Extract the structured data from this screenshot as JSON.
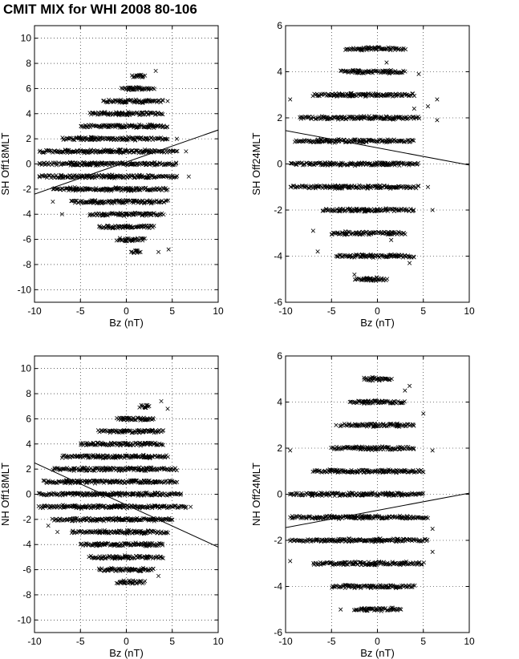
{
  "title": "CMIT MIX for WHI 2008 80-106",
  "chart_data": [
    {
      "id": "sh-18",
      "type": "scatter",
      "xlabel": "Bz (nT)",
      "ylabel": "SH Off18MLT",
      "xlim": [
        -10,
        10
      ],
      "ylim": [
        -11,
        11
      ],
      "xticks": [
        -10,
        -5,
        0,
        5,
        10
      ],
      "yticks": [
        -10,
        -8,
        -6,
        -4,
        -2,
        0,
        2,
        4,
        6,
        8,
        10
      ],
      "grid": true,
      "marker": "x",
      "series": [
        {
          "name": "points",
          "rows": [
            {
              "y": 7,
              "xmin": 0.6,
              "xmax": 2.0
            },
            {
              "y": 6,
              "xmin": -0.5,
              "xmax": 3.0
            },
            {
              "y": 5,
              "xmin": -2.5,
              "xmax": 4.0
            },
            {
              "y": 4,
              "xmin": -4.0,
              "xmax": 4.0
            },
            {
              "y": 3,
              "xmin": -5.0,
              "xmax": 4.5
            },
            {
              "y": 2,
              "xmin": -7.0,
              "xmax": 4.5
            },
            {
              "y": 1,
              "xmin": -9.5,
              "xmax": 5.5
            },
            {
              "y": 0,
              "xmin": -9.5,
              "xmax": 5.5
            },
            {
              "y": -1,
              "xmin": -9.5,
              "xmax": 5.5
            },
            {
              "y": -2,
              "xmin": -8.0,
              "xmax": 4.5
            },
            {
              "y": -3,
              "xmin": -6.0,
              "xmax": 4.5
            },
            {
              "y": -4,
              "xmin": -4.0,
              "xmax": 4.0
            },
            {
              "y": -5,
              "xmin": -3.0,
              "xmax": 3.0
            },
            {
              "y": -6,
              "xmin": -1.0,
              "xmax": 2.0
            },
            {
              "y": -7,
              "xmin": 0.5,
              "xmax": 1.5
            }
          ],
          "outliers": [
            [
              3.2,
              7.4
            ],
            [
              4.5,
              5.0
            ],
            [
              5.5,
              2.0
            ],
            [
              6.5,
              1.0
            ],
            [
              6.8,
              -1.0
            ],
            [
              -8.0,
              -3.0
            ],
            [
              -7.0,
              -4.0
            ],
            [
              3.5,
              -7.0
            ],
            [
              4.6,
              -6.8
            ]
          ]
        }
      ],
      "fit_line": {
        "x": [
          -10,
          10
        ],
        "y": [
          -2.4,
          2.7
        ]
      }
    },
    {
      "id": "sh-24",
      "type": "scatter",
      "xlabel": "Bz (nT)",
      "ylabel": "SH Off24MLT",
      "xlim": [
        -10,
        10
      ],
      "ylim": [
        -6,
        6
      ],
      "xticks": [
        -10,
        -5,
        0,
        5,
        10
      ],
      "yticks": [
        -6,
        -4,
        -2,
        0,
        2,
        4,
        6
      ],
      "grid": true,
      "marker": "x",
      "series": [
        {
          "name": "points",
          "rows": [
            {
              "y": 5,
              "xmin": -3.5,
              "xmax": 3.0
            },
            {
              "y": 4,
              "xmin": -4.0,
              "xmax": 3.0
            },
            {
              "y": 3,
              "xmin": -7.0,
              "xmax": 4.0
            },
            {
              "y": 2,
              "xmin": -8.5,
              "xmax": 4.5
            },
            {
              "y": 1,
              "xmin": -9.0,
              "xmax": 4.0
            },
            {
              "y": 0,
              "xmin": -9.5,
              "xmax": 4.5
            },
            {
              "y": -1,
              "xmin": -9.5,
              "xmax": 4.5
            },
            {
              "y": -2,
              "xmin": -6.0,
              "xmax": 4.0
            },
            {
              "y": -3,
              "xmin": -5.0,
              "xmax": 3.0
            },
            {
              "y": -4,
              "xmin": -4.5,
              "xmax": 4.0
            },
            {
              "y": -5,
              "xmin": -2.5,
              "xmax": 1.0
            }
          ],
          "outliers": [
            [
              -9.5,
              2.8
            ],
            [
              6.5,
              2.8
            ],
            [
              5.5,
              2.5
            ],
            [
              4.0,
              2.4
            ],
            [
              6.5,
              1.9
            ],
            [
              4.5,
              3.9
            ],
            [
              1.0,
              4.4
            ],
            [
              5.5,
              -1.0
            ],
            [
              6.0,
              -2.0
            ],
            [
              3.5,
              -4.3
            ],
            [
              1.5,
              -3.3
            ],
            [
              -6.5,
              -3.8
            ],
            [
              -7.0,
              -2.9
            ],
            [
              -2.5,
              -4.8
            ]
          ]
        }
      ],
      "fit_line": {
        "x": [
          -10,
          10
        ],
        "y": [
          1.45,
          -0.05
        ]
      }
    },
    {
      "id": "nh-18",
      "type": "scatter",
      "xlabel": "Bz (nT)",
      "ylabel": "NH Off18MLT",
      "xlim": [
        -10,
        10
      ],
      "ylim": [
        -11,
        11
      ],
      "xticks": [
        -10,
        -5,
        0,
        5,
        10
      ],
      "yticks": [
        -10,
        -8,
        -6,
        -4,
        -2,
        0,
        2,
        4,
        6,
        8,
        10
      ],
      "grid": true,
      "marker": "x",
      "series": [
        {
          "name": "points",
          "rows": [
            {
              "y": 7,
              "xmin": 1.5,
              "xmax": 2.5
            },
            {
              "y": 6,
              "xmin": -1.0,
              "xmax": 3.0
            },
            {
              "y": 5,
              "xmin": -3.0,
              "xmax": 4.0
            },
            {
              "y": 4,
              "xmin": -5.0,
              "xmax": 4.0
            },
            {
              "y": 3,
              "xmin": -7.0,
              "xmax": 4.5
            },
            {
              "y": 2,
              "xmin": -8.0,
              "xmax": 5.5
            },
            {
              "y": 1,
              "xmin": -9.0,
              "xmax": 5.5
            },
            {
              "y": 0,
              "xmin": -9.5,
              "xmax": 6.0
            },
            {
              "y": -1,
              "xmin": -9.5,
              "xmax": 6.5
            },
            {
              "y": -2,
              "xmin": -8.0,
              "xmax": 5.0
            },
            {
              "y": -3,
              "xmin": -6.0,
              "xmax": 4.5
            },
            {
              "y": -4,
              "xmin": -5.0,
              "xmax": 4.0
            },
            {
              "y": -5,
              "xmin": -4.0,
              "xmax": 4.0
            },
            {
              "y": -6,
              "xmin": -3.0,
              "xmax": 3.0
            },
            {
              "y": -7,
              "xmin": -1.0,
              "xmax": 2.0
            }
          ],
          "outliers": [
            [
              3.8,
              7.4
            ],
            [
              4.5,
              6.8
            ],
            [
              2.0,
              6.9
            ],
            [
              6.5,
              -1.0
            ],
            [
              7.0,
              -1.0
            ],
            [
              -7.5,
              -3.0
            ],
            [
              -8.5,
              -2.5
            ],
            [
              3.5,
              -6.5
            ]
          ]
        }
      ],
      "fit_line": {
        "x": [
          -10,
          10
        ],
        "y": [
          2.5,
          -4.2
        ]
      }
    },
    {
      "id": "nh-24",
      "type": "scatter",
      "xlabel": "Bz (nT)",
      "ylabel": "NH Off24MLT",
      "xlim": [
        -10,
        10
      ],
      "ylim": [
        -6,
        6
      ],
      "xticks": [
        -10,
        -5,
        0,
        5,
        10
      ],
      "yticks": [
        -6,
        -4,
        -2,
        0,
        2,
        4,
        6
      ],
      "grid": true,
      "marker": "x",
      "series": [
        {
          "name": "points",
          "rows": [
            {
              "y": 5,
              "xmin": -1.5,
              "xmax": 1.5
            },
            {
              "y": 4,
              "xmin": -3.0,
              "xmax": 3.0
            },
            {
              "y": 3,
              "xmin": -4.0,
              "xmax": 4.0
            },
            {
              "y": 2,
              "xmin": -5.0,
              "xmax": 4.0
            },
            {
              "y": 1,
              "xmin": -7.0,
              "xmax": 5.0
            },
            {
              "y": 0,
              "xmin": -9.5,
              "xmax": 5.0
            },
            {
              "y": -1,
              "xmin": -9.5,
              "xmax": 5.5
            },
            {
              "y": -2,
              "xmin": -9.5,
              "xmax": 5.5
            },
            {
              "y": -3,
              "xmin": -7.0,
              "xmax": 5.0
            },
            {
              "y": -4,
              "xmin": -5.0,
              "xmax": 4.0
            },
            {
              "y": -5,
              "xmin": -2.5,
              "xmax": 2.5
            }
          ],
          "outliers": [
            [
              3.5,
              4.7
            ],
            [
              3.0,
              4.5
            ],
            [
              -9.5,
              1.9
            ],
            [
              6.0,
              1.9
            ],
            [
              6.0,
              -1.5
            ],
            [
              6.0,
              -2.5
            ],
            [
              -9.5,
              -2.9
            ],
            [
              -4.0,
              -5.0
            ],
            [
              -4.5,
              3.0
            ],
            [
              5.0,
              3.5
            ]
          ]
        }
      ],
      "fit_line": {
        "x": [
          -10,
          10
        ],
        "y": [
          -1.45,
          0.05
        ]
      }
    }
  ]
}
